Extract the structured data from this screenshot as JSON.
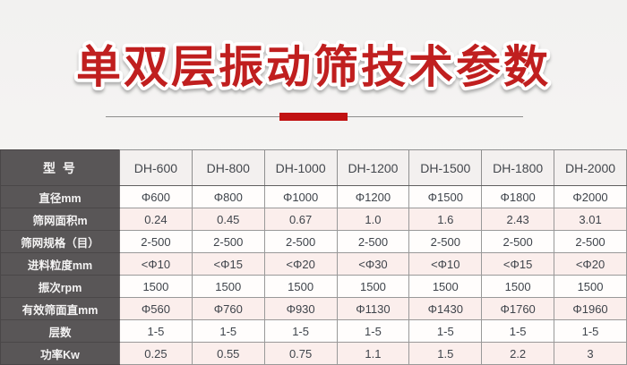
{
  "page": {
    "title": "单双层振动筛技术参数",
    "colors": {
      "accent": "#c01f1f",
      "divider_bar": "#c11212",
      "dark_column": "#595657",
      "pink_row": "#fbeeec"
    }
  },
  "table": {
    "corner_label": "型 号",
    "models": [
      "DH-600",
      "DH-800",
      "DH-1000",
      "DH-1200",
      "DH-1500",
      "DH-1800",
      "DH-2000"
    ],
    "rows": [
      {
        "label": "直径mm",
        "values": [
          "Φ600",
          "Φ800",
          "Φ1000",
          "Φ1200",
          "Φ1500",
          "Φ1800",
          "Φ2000"
        ]
      },
      {
        "label": "筛网面积m",
        "values": [
          "0.24",
          "0.45",
          "0.67",
          "1.0",
          "1.6",
          "2.43",
          "3.01"
        ]
      },
      {
        "label": "筛网规格（目）",
        "values": [
          "2-500",
          "2-500",
          "2-500",
          "2-500",
          "2-500",
          "2-500",
          "2-500"
        ]
      },
      {
        "label": "进料粒度mm",
        "values": [
          "<Φ10",
          "<Φ15",
          "<Φ20",
          "<Φ30",
          "<Φ10",
          "<Φ15",
          "<Φ20"
        ]
      },
      {
        "label": "振次rpm",
        "values": [
          "1500",
          "1500",
          "1500",
          "1500",
          "1500",
          "1500",
          "1500"
        ]
      },
      {
        "label": "有效筛面直mm",
        "values": [
          "Φ560",
          "Φ760",
          "Φ930",
          "Φ1130",
          "Φ1430",
          "Φ1760",
          "Φ1960"
        ]
      },
      {
        "label": "层数",
        "values": [
          "1-5",
          "1-5",
          "1-5",
          "1-5",
          "1-5",
          "1-5",
          "1-5"
        ]
      },
      {
        "label": "功率Kw",
        "values": [
          "0.25",
          "0.55",
          "0.75",
          "1.1",
          "1.5",
          "2.2",
          "3"
        ]
      }
    ]
  }
}
